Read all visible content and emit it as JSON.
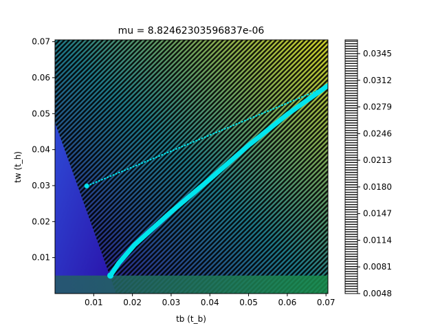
{
  "chart_data": {
    "type": "contour",
    "title": "mu = 8.82462303596837e-06",
    "xlabel": "tb (t_b)",
    "ylabel": "tw (t_h)",
    "xlim": [
      0.0,
      0.0705
    ],
    "ylim": [
      0.0,
      0.0705
    ],
    "x_ticks": [
      "0.01",
      "0.02",
      "0.03",
      "0.04",
      "0.05",
      "0.06",
      "0.07"
    ],
    "y_ticks": [
      "0.01",
      "0.02",
      "0.03",
      "0.04",
      "0.05",
      "0.06",
      "0.07"
    ],
    "colorbar": {
      "range": [
        0.0048,
        0.0362
      ],
      "ticks": [
        "0.0048",
        "0.0081",
        "0.0114",
        "0.0147",
        "0.0180",
        "0.0213",
        "0.0246",
        "0.0279",
        "0.0312",
        "0.0345"
      ]
    },
    "colors": {
      "low": "#2c0a8a",
      "mid": "#1f7a88",
      "high": "#d4d62a",
      "contour_line": "#000000",
      "trajectory": "#00e5ee",
      "infeasible_region": "#2a3ec8",
      "bottom_band": "#2a6e60"
    },
    "trajectory_upper": [
      [
        0.0082,
        0.0299
      ],
      [
        0.0705,
        0.0576
      ]
    ],
    "trajectory_lower": [
      [
        0.0143,
        0.005
      ],
      [
        0.0165,
        0.0085
      ],
      [
        0.0205,
        0.0135
      ],
      [
        0.03,
        0.0227
      ],
      [
        0.04,
        0.0318
      ],
      [
        0.05,
        0.0412
      ],
      [
        0.06,
        0.0498
      ],
      [
        0.0705,
        0.0578
      ]
    ],
    "infeasible_triangle": [
      [
        0.0,
        0.0475
      ],
      [
        0.0,
        0.0
      ],
      [
        0.0158,
        0.0
      ]
    ],
    "bottom_band_y": 0.005
  }
}
